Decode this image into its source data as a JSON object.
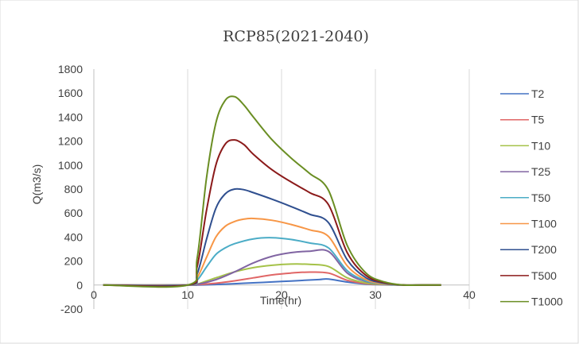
{
  "chart_data": {
    "type": "line",
    "title": "RCP85(2021-2040)",
    "xlabel": "Time(hr)",
    "ylabel": "Q(m3/s)",
    "xlim": [
      0,
      40
    ],
    "ylim": [
      -200,
      1800
    ],
    "x_ticks": [
      0,
      10,
      20,
      30,
      40
    ],
    "y_ticks": [
      -200,
      0,
      200,
      400,
      600,
      800,
      1000,
      1200,
      1400,
      1600,
      1800
    ],
    "grid": "vertical",
    "legend_position": "right",
    "series": [
      {
        "name": "T2",
        "color": "#4472C4",
        "x": [
          1,
          10,
          12,
          14,
          16,
          18,
          20,
          22,
          24,
          25,
          27,
          29,
          31,
          33,
          35,
          37
        ],
        "y": [
          0,
          0,
          2,
          8,
          15,
          22,
          30,
          38,
          46,
          50,
          25,
          8,
          2,
          0,
          0,
          0
        ]
      },
      {
        "name": "T5",
        "color": "#E06666",
        "x": [
          1,
          10,
          11,
          13,
          15,
          17,
          19,
          21,
          23,
          25,
          27,
          29,
          31,
          33,
          35,
          37
        ],
        "y": [
          0,
          0,
          3,
          15,
          35,
          60,
          85,
          100,
          108,
          100,
          40,
          12,
          3,
          0,
          0,
          0
        ]
      },
      {
        "name": "T10",
        "color": "#A5C249",
        "x": [
          1,
          10,
          11,
          13,
          15,
          17,
          19,
          21,
          23,
          25,
          27,
          29,
          31,
          33,
          35,
          37
        ],
        "y": [
          0,
          0,
          8,
          60,
          110,
          145,
          165,
          175,
          172,
          155,
          60,
          18,
          5,
          0,
          0,
          0
        ]
      },
      {
        "name": "T25",
        "color": "#8064A2",
        "x": [
          1,
          10,
          11,
          13,
          15,
          17,
          19,
          21,
          23,
          25,
          27,
          29,
          31,
          33,
          35,
          37
        ],
        "y": [
          0,
          0,
          5,
          45,
          110,
          185,
          240,
          270,
          282,
          280,
          100,
          30,
          8,
          0,
          0,
          0
        ]
      },
      {
        "name": "T50",
        "color": "#4BACC6",
        "x": [
          1,
          10,
          11,
          12,
          13,
          14,
          15,
          17,
          19,
          21,
          23,
          25,
          27,
          29,
          31,
          33,
          35,
          37
        ],
        "y": [
          0,
          0,
          40,
          150,
          255,
          310,
          345,
          385,
          395,
          380,
          350,
          310,
          120,
          35,
          8,
          0,
          0,
          0
        ]
      },
      {
        "name": "T100",
        "color": "#F79646",
        "x": [
          1,
          10,
          11,
          12,
          13,
          14,
          15,
          16,
          17,
          19,
          21,
          23,
          25,
          27,
          29,
          31,
          33,
          35,
          37
        ],
        "y": [
          0,
          0,
          60,
          230,
          400,
          490,
          530,
          550,
          555,
          540,
          505,
          460,
          405,
          160,
          45,
          10,
          0,
          0,
          0
        ]
      },
      {
        "name": "T200",
        "color": "#2F4F8F",
        "x": [
          1,
          10,
          11,
          12,
          13,
          14,
          15,
          16,
          17,
          19,
          21,
          23,
          25,
          27,
          29,
          31,
          33,
          35,
          37
        ],
        "y": [
          0,
          0,
          90,
          380,
          640,
          760,
          800,
          795,
          770,
          715,
          655,
          590,
          520,
          210,
          60,
          15,
          0,
          0,
          0
        ]
      },
      {
        "name": "T500",
        "color": "#8B1A1A",
        "x": [
          1,
          10,
          11,
          12,
          13,
          14,
          15,
          16,
          17,
          19,
          21,
          23,
          25,
          27,
          29,
          31,
          33,
          35,
          37
        ],
        "y": [
          0,
          0,
          150,
          620,
          1000,
          1175,
          1210,
          1170,
          1090,
          960,
          860,
          770,
          670,
          270,
          80,
          20,
          0,
          0,
          0
        ]
      },
      {
        "name": "T1000",
        "color": "#6A8E23",
        "x": [
          1,
          10,
          11,
          12,
          13,
          14,
          15,
          16,
          17,
          19,
          21,
          23,
          25,
          27,
          29,
          31,
          33,
          35,
          37
        ],
        "y": [
          0,
          0,
          220,
          890,
          1350,
          1540,
          1570,
          1500,
          1400,
          1210,
          1060,
          930,
          790,
          330,
          100,
          25,
          0,
          0,
          0
        ]
      }
    ]
  }
}
